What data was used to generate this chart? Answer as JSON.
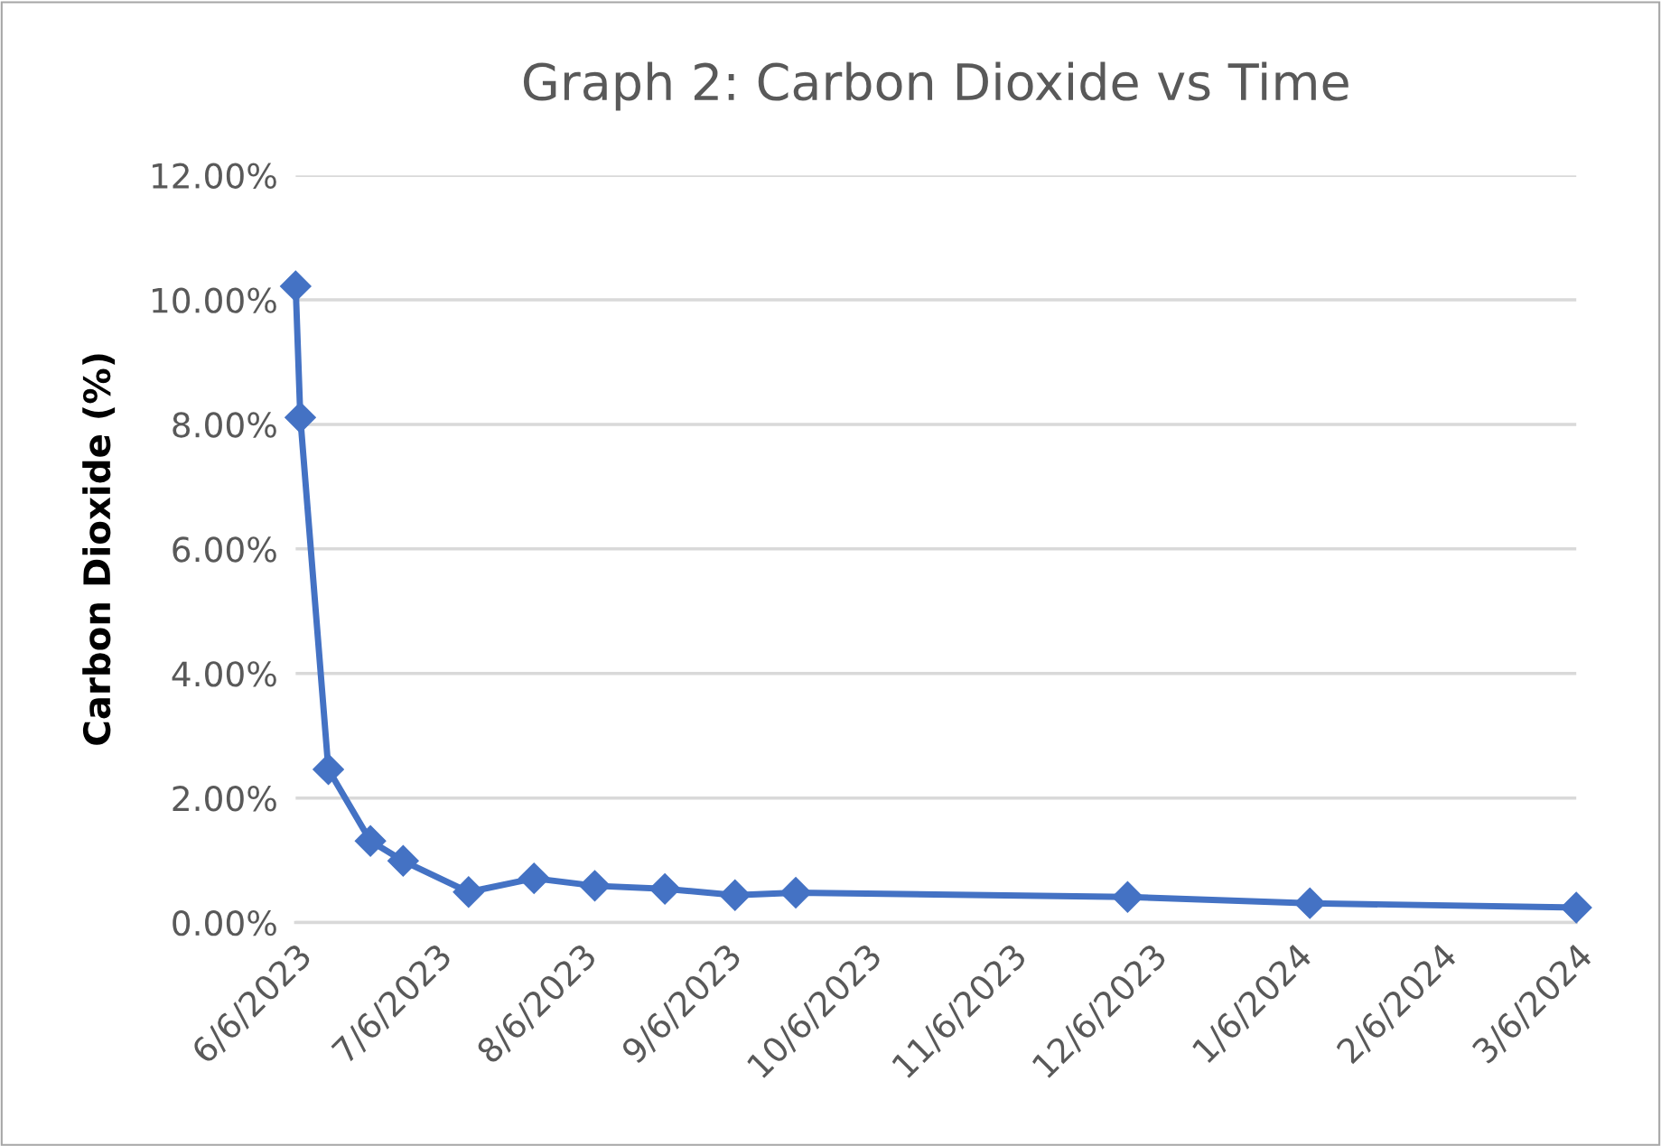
{
  "chart_data": {
    "type": "line",
    "title": "Graph 2: Carbon Dioxide vs Time",
    "ylabel": "Carbon Dioxide (%)",
    "x": [
      "2023-06-06",
      "2023-06-07",
      "2023-06-13",
      "2023-06-22",
      "2023-06-29",
      "2023-07-13",
      "2023-07-27",
      "2023-08-09",
      "2023-08-24",
      "2023-09-08",
      "2023-09-21",
      "2023-12-01",
      "2024-01-09",
      "2024-03-06"
    ],
    "series": [
      {
        "color": "#4472c4",
        "values": [
          10.22,
          8.11,
          2.46,
          1.31,
          0.99,
          0.49,
          0.71,
          0.59,
          0.54,
          0.44,
          0.48,
          0.41,
          0.31,
          0.24
        ]
      }
    ],
    "xlim": [
      "2023-06-06",
      "2024-03-06"
    ],
    "xticks": [
      {
        "value": "2023-06-06",
        "label": "6/6/2023"
      },
      {
        "value": "2023-07-06",
        "label": "7/6/2023"
      },
      {
        "value": "2023-08-06",
        "label": "8/6/2023"
      },
      {
        "value": "2023-09-06",
        "label": "9/6/2023"
      },
      {
        "value": "2023-10-06",
        "label": "10/6/2023"
      },
      {
        "value": "2023-11-06",
        "label": "11/6/2023"
      },
      {
        "value": "2023-12-06",
        "label": "12/6/2023"
      },
      {
        "value": "2024-01-06",
        "label": "1/6/2024"
      },
      {
        "value": "2024-02-06",
        "label": "2/6/2024"
      },
      {
        "value": "2024-03-06",
        "label": "3/6/2024"
      }
    ],
    "ylim": [
      0,
      12
    ],
    "yticks": [
      {
        "value": 0,
        "label": "0.00%"
      },
      {
        "value": 2,
        "label": "2.00%"
      },
      {
        "value": 4,
        "label": "4.00%"
      },
      {
        "value": 6,
        "label": "6.00%"
      },
      {
        "value": 8,
        "label": "8.00%"
      },
      {
        "value": 10,
        "label": "10.00%"
      },
      {
        "value": 12,
        "label": "12.00%"
      }
    ],
    "grid": "y",
    "marker": "diamond",
    "line_style": "solid",
    "legend": false
  }
}
